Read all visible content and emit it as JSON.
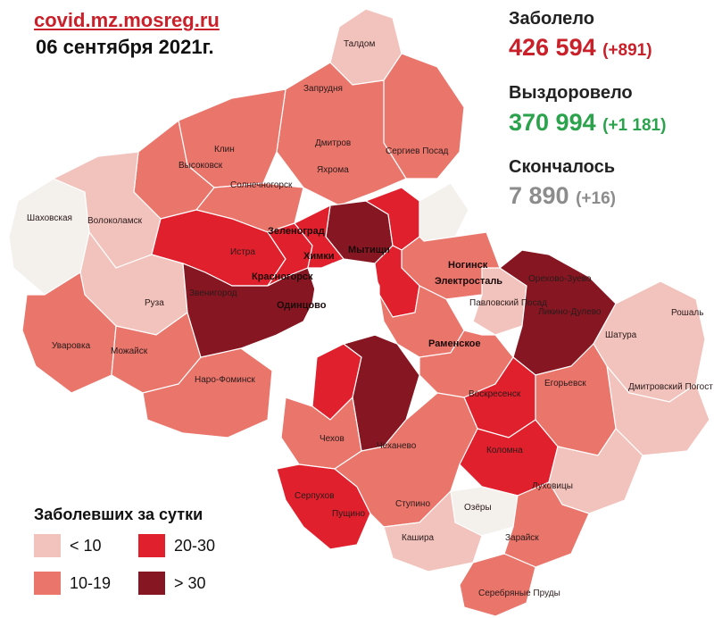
{
  "header": {
    "url": "covid.mz.mosreg.ru",
    "date": "06 сентября 2021г."
  },
  "stats": {
    "infected": {
      "label": "Заболело",
      "value": "426 594",
      "delta": "(+891)",
      "color": "#c9202a"
    },
    "recovered": {
      "label": "Выздоровело",
      "value": "370 994",
      "delta": "(+1 181)",
      "color": "#2ba24c"
    },
    "deaths": {
      "label": "Скончалось",
      "value": "7 890",
      "delta": "(+16)",
      "color": "#8c8c8c"
    }
  },
  "legend": {
    "title": "Заболевших за сутки",
    "items": [
      {
        "label": "< 10",
        "color": "#f2c3bc"
      },
      {
        "label": "10-19",
        "color": "#e9756b"
      },
      {
        "label": "20-30",
        "color": "#e0202c"
      },
      {
        "label": "> 30",
        "color": "#861722"
      }
    ]
  },
  "map": {
    "colors": {
      "white": "#f4f0ec",
      "low": "#f2c3bc",
      "mid": "#e9756b",
      "midDark": "#d9584f",
      "high": "#e0202c",
      "top": "#861722",
      "border": "#ffffff",
      "moscow": "#ffffff"
    },
    "places": [
      "Талдом",
      "Запрудня",
      "Клин",
      "Дмитров",
      "Сергиев Посад",
      "Высоковск",
      "Яхрома",
      "Солнечногорск",
      "Шаховская",
      "Волоколамск",
      "Зеленоград",
      "Истра",
      "Химки",
      "Мытищи",
      "Красногорск",
      "Звенигород",
      "Одинцово",
      "Руза",
      "Ногинск",
      "Электросталь",
      "Орехово-Зуево",
      "Павловский Посад",
      "Ликино-Дулево",
      "Рошаль",
      "Уваровка",
      "Можайск",
      "Раменское",
      "Шатура",
      "Наро-Фоминск",
      "Воскресенск",
      "Егорьевск",
      "Дмитровский Погост",
      "Чехов",
      "Чеханево",
      "Коломна",
      "Серпухов",
      "Ступино",
      "Луховицы",
      "Озёры",
      "Пущино",
      "Кашира",
      "Зарайск",
      "Серебряные Пруды"
    ]
  }
}
